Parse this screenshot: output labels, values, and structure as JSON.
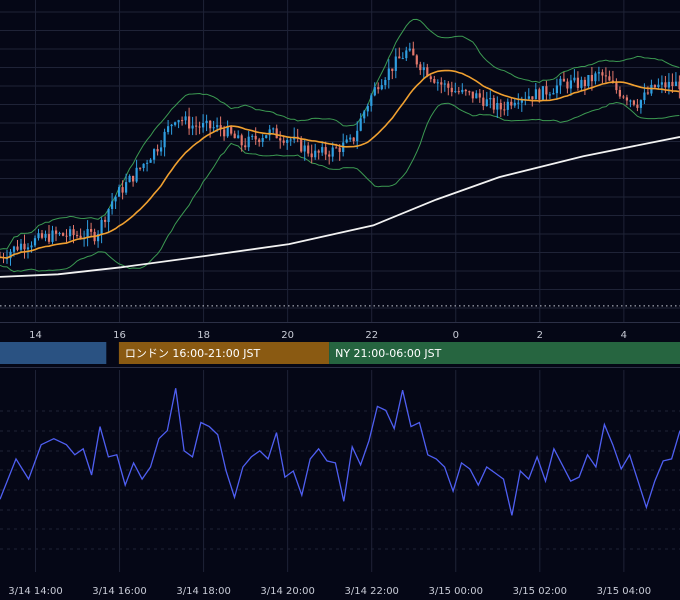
{
  "colors": {
    "background": "#050716",
    "grid": "#1f2337",
    "candle_up": "#2f9ee0",
    "candle_down": "#e2776b",
    "ma_short": "#f0a030",
    "ma_long": "#f2f2f2",
    "bollinger": "#3c9a52",
    "oscillator": "#4f5ff2",
    "session_tokyo": "#2a5282",
    "session_london": "#8a5a12",
    "session_ny": "#266540"
  },
  "sessions": [
    {
      "label": "",
      "start": 12.0,
      "end": 15.65,
      "color": "#2a5282"
    },
    {
      "label": "ロンドン 16:00-21:00 JST",
      "start": 15.95,
      "end": 20.95,
      "color": "#8a5a12"
    },
    {
      "label": "NY 21:00-06:00 JST",
      "start": 20.95,
      "end": 30.2,
      "color": "#266540"
    }
  ],
  "chart_data": [
    {
      "type": "candlestick",
      "title": "",
      "x_ticks": [
        {
          "t": 14,
          "label": "14"
        },
        {
          "t": 16,
          "label": "16"
        },
        {
          "t": 18,
          "label": "18"
        },
        {
          "t": 20,
          "label": "20"
        },
        {
          "t": 22,
          "label": "22"
        },
        {
          "t": 24,
          "label": "0"
        },
        {
          "t": 26,
          "label": "2"
        },
        {
          "t": 28,
          "label": "4"
        }
      ],
      "xlim": [
        13.12,
        29.3
      ],
      "ylim": [
        0,
        100
      ],
      "grid": true,
      "series": [
        {
          "name": "",
          "kind": "candles"
        },
        {
          "name": "",
          "kind": "moving-average-short"
        },
        {
          "name": "",
          "kind": "moving-average-long"
        },
        {
          "name": "",
          "kind": "bollinger-bands"
        }
      ],
      "guide_line": 5.0
    },
    {
      "type": "line",
      "title": "",
      "x_ticks": [
        {
          "t": 14,
          "label": "3/14 14:00"
        },
        {
          "t": 16,
          "label": "3/14 16:00"
        },
        {
          "t": 18,
          "label": "3/14 18:00"
        },
        {
          "t": 20,
          "label": "3/14 20:00"
        },
        {
          "t": 22,
          "label": "3/14 22:00"
        },
        {
          "t": 24,
          "label": "3/15 00:00"
        },
        {
          "t": 26,
          "label": "3/15 02:00"
        },
        {
          "t": 28,
          "label": "3/15 04:00"
        }
      ],
      "xlim": [
        13.12,
        29.3
      ],
      "ylim": [
        0,
        100
      ],
      "grid": true,
      "series": [
        {
          "name": "",
          "x": [
            13.12,
            13.5,
            13.8,
            14.1,
            14.4,
            14.7,
            14.9,
            15.1,
            15.3,
            15.5,
            15.7,
            15.9,
            16.1,
            16.3,
            16.5,
            16.7,
            16.9,
            17.1,
            17.3,
            17.5,
            17.7,
            17.9,
            18.1,
            18.3,
            18.5,
            18.7,
            18.9,
            19.1,
            19.3,
            19.5,
            19.7,
            19.9,
            20.1,
            20.3,
            20.5,
            20.7,
            20.9,
            21.1,
            21.3,
            21.5,
            21.7,
            21.9,
            22.1,
            22.3,
            22.5,
            22.7,
            22.9,
            23.1,
            23.3,
            23.5,
            23.7,
            23.9,
            24.1,
            24.3,
            24.5,
            24.7,
            24.9,
            25.1,
            25.3,
            25.5,
            25.7,
            25.9,
            26.1,
            26.3,
            26.5,
            26.7,
            26.9,
            27.1,
            27.3,
            27.5,
            27.7,
            27.9,
            28.1,
            28.3,
            28.5,
            28.7,
            28.9,
            29.1,
            29.3
          ],
          "values": [
            36,
            56,
            46,
            63,
            66,
            63,
            58,
            61,
            48,
            72,
            57,
            58,
            43,
            54,
            46,
            52,
            66,
            70,
            91,
            60,
            57,
            74,
            72,
            68,
            50,
            37,
            52,
            57,
            60,
            56,
            69,
            47,
            50,
            38,
            56,
            61,
            55,
            54,
            35,
            62,
            53,
            65,
            82,
            80,
            71,
            90,
            72,
            74,
            58,
            56,
            52,
            40,
            54,
            51,
            43,
            52,
            49,
            46,
            28,
            50,
            46,
            57,
            45,
            61,
            53,
            45,
            47,
            58,
            52,
            73,
            63,
            51,
            58,
            45,
            32,
            45,
            55,
            56,
            70
          ]
        }
      ]
    }
  ]
}
